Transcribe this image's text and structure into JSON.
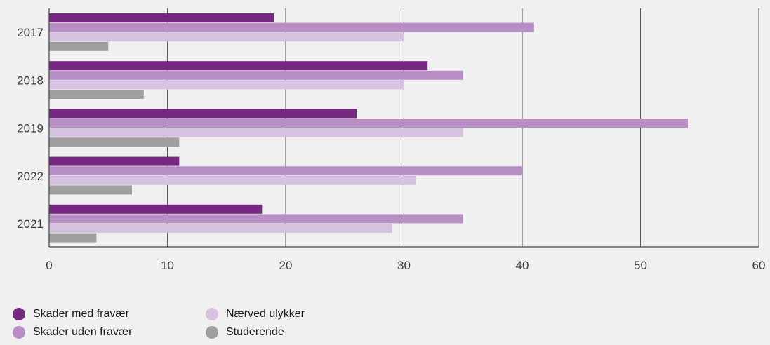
{
  "chart_data": {
    "type": "bar",
    "orientation": "horizontal",
    "categories": [
      "2017",
      "2018",
      "2019",
      "2022",
      "2021"
    ],
    "series": [
      {
        "name": "Skader med fravær",
        "color": "#74287f",
        "values": [
          19,
          32,
          26,
          11,
          18
        ]
      },
      {
        "name": "Skader uden fravær",
        "color": "#b78fc5",
        "values": [
          41,
          35,
          54,
          40,
          35
        ]
      },
      {
        "name": "Nærved ulykker",
        "color": "#d6c3e0",
        "values": [
          30,
          30,
          35,
          31,
          29
        ]
      },
      {
        "name": "Studerende",
        "color": "#9f9f9f",
        "values": [
          5,
          8,
          11,
          7,
          4
        ]
      }
    ],
    "xlim": [
      0,
      60
    ],
    "xticks": [
      0,
      10,
      20,
      30,
      40,
      50,
      60
    ],
    "title": "",
    "xlabel": "",
    "ylabel": "",
    "grid": true,
    "legend_position": "bottom-left"
  }
}
